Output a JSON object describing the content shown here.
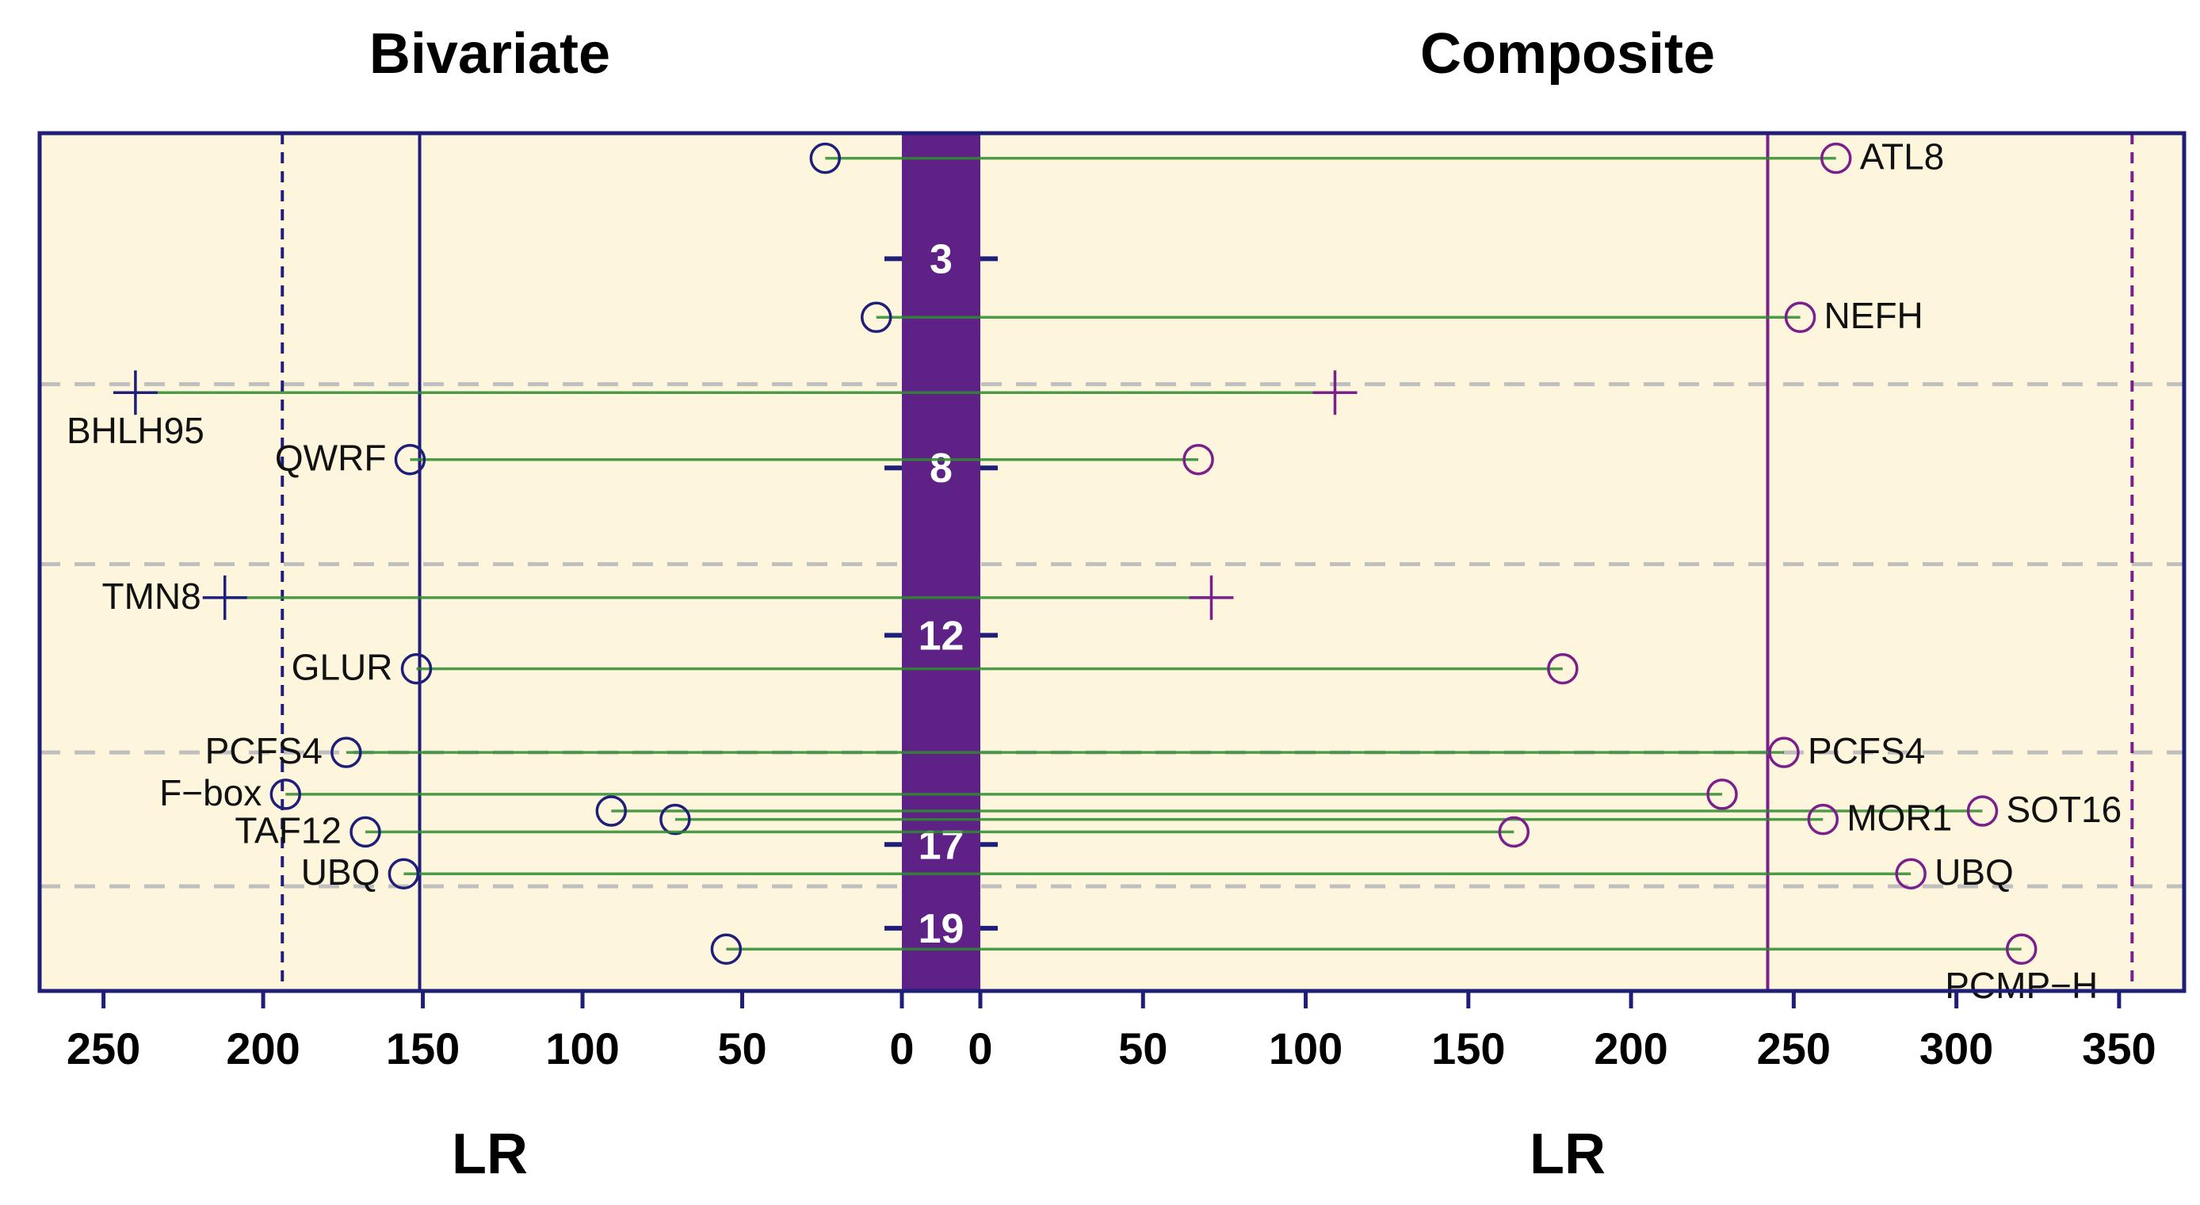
{
  "chart_data": {
    "type": "scatter",
    "panels": [
      {
        "title": "Bivariate",
        "xlabel": "LR",
        "xlim": [
          0,
          270
        ],
        "reversed": true,
        "ticks": [
          250,
          200,
          150,
          100,
          50,
          0
        ]
      },
      {
        "title": "Composite",
        "xlabel": "LR",
        "xlim": [
          0,
          370
        ],
        "reversed": false,
        "ticks": [
          0,
          50,
          100,
          150,
          200,
          250,
          300,
          350
        ]
      }
    ],
    "chromosomes": [
      {
        "label": "3",
        "position": 3.0
      },
      {
        "label": "8",
        "position": 8.0
      },
      {
        "label": "12",
        "position": 12.0
      },
      {
        "label": "17",
        "position": 17.0
      },
      {
        "label": "19",
        "position": 19.0
      }
    ],
    "chromosome_boundaries": [
      6.0,
      10.3,
      14.8,
      18.0
    ],
    "thresholds": {
      "bivariate_solid": 151,
      "bivariate_dashed": 194,
      "composite_solid": 242,
      "composite_dashed": 354
    },
    "genes": [
      {
        "pos": 0.6,
        "biv": 24,
        "comp": 263,
        "biv_label": "",
        "comp_label": "ATL8",
        "marker": "circle"
      },
      {
        "pos": 4.4,
        "biv": 8,
        "comp": 252,
        "biv_label": "",
        "comp_label": "NEFH",
        "marker": "circle"
      },
      {
        "pos": 6.2,
        "biv": 240,
        "comp": 109,
        "biv_label": "BHLH95",
        "comp_label": "",
        "marker": "plus"
      },
      {
        "pos": 7.8,
        "biv": 154,
        "comp": 67,
        "biv_label": "QWRF",
        "comp_label": "",
        "marker": "circle"
      },
      {
        "pos": 11.1,
        "biv": 212,
        "comp": 71,
        "biv_label": "TMN8",
        "comp_label": "",
        "marker": "plus"
      },
      {
        "pos": 12.8,
        "biv": 152,
        "comp": 179,
        "biv_label": "GLUR",
        "comp_label": "",
        "marker": "circle"
      },
      {
        "pos": 14.8,
        "biv": 174,
        "comp": 247,
        "biv_label": "PCFS4",
        "comp_label": "PCFS4",
        "marker": "circle"
      },
      {
        "pos": 15.8,
        "biv": 193,
        "comp": 228,
        "biv_label": "F−box",
        "comp_label": "",
        "marker": "circle"
      },
      {
        "pos": 16.2,
        "biv": 91,
        "comp": 308,
        "biv_label": "",
        "comp_label": "SOT16",
        "marker": "circle"
      },
      {
        "pos": 16.4,
        "biv": 71,
        "comp": 259,
        "biv_label": "",
        "comp_label": "MOR1",
        "marker": "circle"
      },
      {
        "pos": 16.7,
        "biv": 168,
        "comp": 164,
        "biv_label": "TAF12",
        "comp_label": "",
        "marker": "circle"
      },
      {
        "pos": 17.7,
        "biv": 156,
        "comp": 286,
        "biv_label": "UBQ",
        "comp_label": "UBQ",
        "marker": "circle"
      },
      {
        "pos": 19.5,
        "biv": 55,
        "comp": 320,
        "biv_label": "",
        "comp_label": "PCMP−H",
        "marker": "circle"
      }
    ]
  },
  "colors": {
    "panel_bg": "#fdf6dc",
    "frame": "#1f1f7a",
    "bivariate_marker": "#1f1f7a",
    "composite_marker": "#7b1f8a",
    "chromosome_band": "#5e2185",
    "link_line": "#2e8b2e",
    "boundary": "#bfbfbf"
  }
}
